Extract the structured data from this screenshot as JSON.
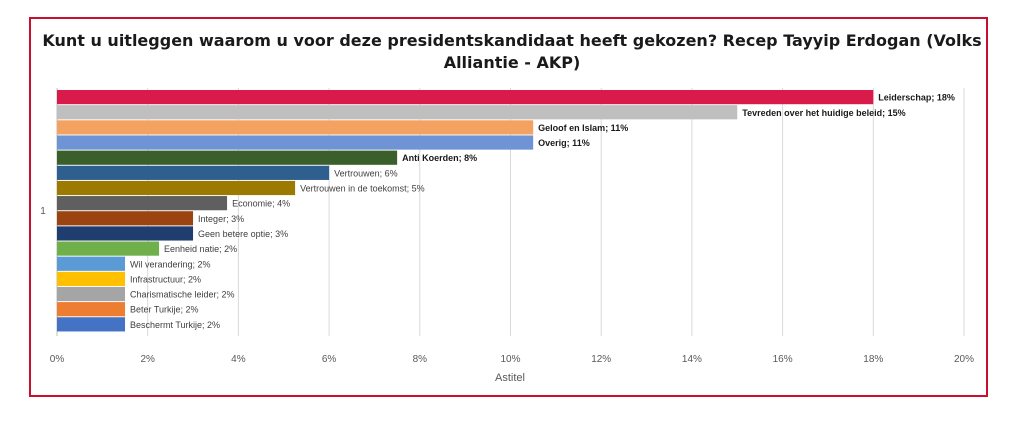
{
  "chart_data": {
    "type": "bar",
    "orientation": "horizontal",
    "title_line1": "Kunt u uitleggen waarom u voor deze presidentskandidaat heeft gekozen? Recep Tayyip Erdogan (Volks",
    "title_line2": "Alliantie - AKP)",
    "xlabel": "Astitel",
    "category_axis_label": "1",
    "xlim": [
      0,
      20
    ],
    "xticks": [
      "0%",
      "2%",
      "4%",
      "6%",
      "8%",
      "10%",
      "12%",
      "14%",
      "16%",
      "18%",
      "20%"
    ],
    "grid": true,
    "bars": [
      {
        "label": "Leiderschap; 18%",
        "value": 18,
        "color": "#d81b4a",
        "bold": true
      },
      {
        "label": "Tevreden over het huidige beleid; 15%",
        "value": 15,
        "color": "#bfbfbf",
        "bold": true
      },
      {
        "label": "Geloof en Islam; 11%",
        "value": 10.5,
        "color": "#f4a261",
        "bold": true
      },
      {
        "label": "Overig; 11%",
        "value": 10.5,
        "color": "#6f94d6",
        "bold": true
      },
      {
        "label": "Anti Koerden; 8%",
        "value": 7.5,
        "color": "#3a5f2a",
        "bold": true
      },
      {
        "label": "Vertrouwen; 6%",
        "value": 6,
        "color": "#2f5f8f",
        "bold": false
      },
      {
        "label": "Vertrouwen in de toekomst; 5%",
        "value": 5.25,
        "color": "#9c7a00",
        "bold": false
      },
      {
        "label": "Economie; 4%",
        "value": 3.75,
        "color": "#5f5f5f",
        "bold": false
      },
      {
        "label": "Integer; 3%",
        "value": 3,
        "color": "#9c4312",
        "bold": false
      },
      {
        "label": "Geen betere optie; 3%",
        "value": 3,
        "color": "#1f3d6e",
        "bold": false
      },
      {
        "label": "Eenheid natie; 2%",
        "value": 2.25,
        "color": "#6fb04a",
        "bold": false
      },
      {
        "label": "Wil verandering; 2%",
        "value": 1.5,
        "color": "#5b9bd5",
        "bold": false
      },
      {
        "label": "Infrastructuur; 2%",
        "value": 1.5,
        "color": "#ffc000",
        "bold": false
      },
      {
        "label": "Charismatische leider; 2%",
        "value": 1.5,
        "color": "#a5a5a5",
        "bold": false
      },
      {
        "label": "Beter Turkije; 2%",
        "value": 1.5,
        "color": "#ed7d31",
        "bold": false
      },
      {
        "label": "Beschermt Turkije; 2%",
        "value": 1.5,
        "color": "#4472c4",
        "bold": false
      }
    ]
  }
}
